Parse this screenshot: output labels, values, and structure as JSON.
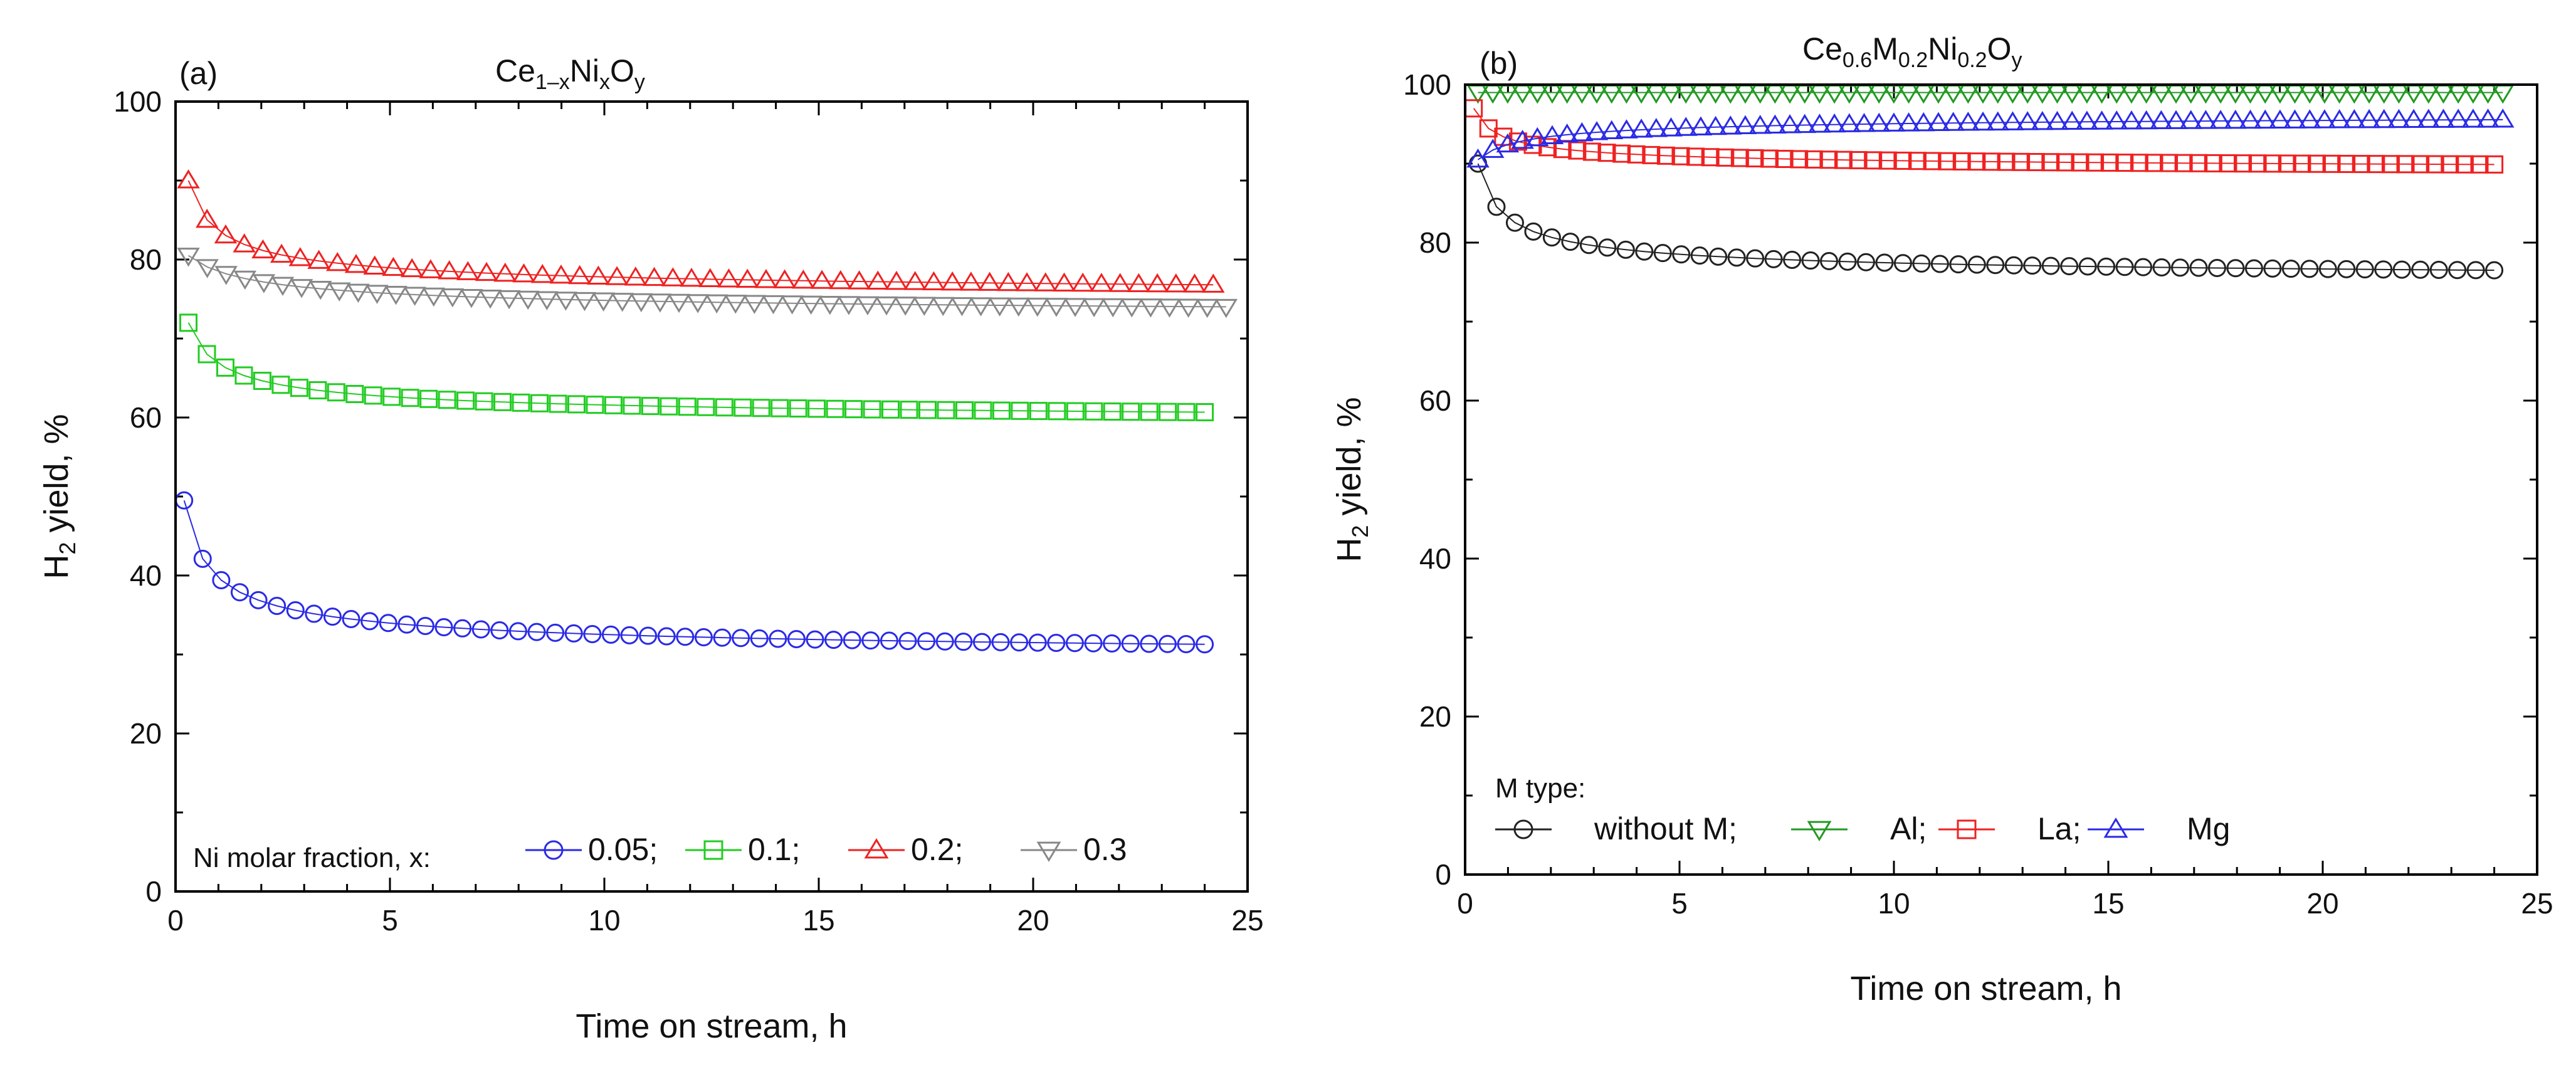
{
  "chart_data": [
    {
      "type": "scatter",
      "panel": "(a)",
      "title": {
        "base": "Ce",
        "sub1": "1–x",
        "mid": "Ni",
        "sub2": "x",
        "end": "O",
        "sub3": "y"
      },
      "xlabel": "Time on stream, h",
      "ylabel": {
        "main": "H",
        "sub": "2",
        "rest": " yield, %"
      },
      "xlim": [
        0,
        25
      ],
      "ylim": [
        0,
        100
      ],
      "xticks": [
        0,
        5,
        10,
        15,
        20,
        25
      ],
      "yticks": [
        0,
        20,
        40,
        60,
        80,
        100
      ],
      "legend_caption": "Ni molar fraction, x:",
      "series": [
        {
          "name": "0.05;",
          "marker": "circle",
          "color": "#2a2ae6",
          "start": 0.2,
          "end": 24,
          "a": 49.5,
          "b": 29,
          "tau": 0.3,
          "n": 56
        },
        {
          "name": "0.1;",
          "marker": "square",
          "color": "#22cc22",
          "start": 0.3,
          "end": 24,
          "a": 72,
          "b": 59,
          "tau": 0.4,
          "n": 56
        },
        {
          "name": "0.2;",
          "marker": "triangle-up",
          "color": "#ee2222",
          "start": 0.3,
          "end": 24.2,
          "a": 90,
          "b": 75,
          "tau": 0.35,
          "n": 56
        },
        {
          "name": "0.3",
          "marker": "triangle-down",
          "color": "#888888",
          "start": 0.3,
          "end": 24.5,
          "a": 80.5,
          "b": 72.5,
          "tau": 0.9,
          "n": 56
        }
      ]
    },
    {
      "type": "scatter",
      "panel": "(b)",
      "title": {
        "base": "Ce",
        "sub1": "0.6",
        "mid": "M",
        "sub2": "0.2",
        "end": "Ni",
        "sub3": "0.2",
        "tail": "O",
        "sub4": "y"
      },
      "xlabel": "Time on stream, h",
      "ylabel": {
        "main": "H",
        "sub": "2",
        "rest": " yield, %"
      },
      "xlim": [
        0,
        25
      ],
      "ylim": [
        0,
        100
      ],
      "xticks": [
        0,
        5,
        10,
        15,
        20,
        25
      ],
      "yticks": [
        0,
        20,
        40,
        60,
        80,
        100
      ],
      "legend_caption": "M type:",
      "series": [
        {
          "name": "without M;",
          "marker": "circle",
          "color": "#222222",
          "start": 0.3,
          "end": 24,
          "a": 90,
          "b": 74.8,
          "tau": 0.3,
          "n": 56
        },
        {
          "name": "Al;",
          "marker": "triangle-down",
          "color": "#229922",
          "start": 0.3,
          "end": 24.2,
          "a": 99,
          "b": 99,
          "tau": 1,
          "n": 70
        },
        {
          "name": "La;",
          "marker": "square",
          "color": "#ee2222",
          "start": 0.2,
          "end": 24,
          "a": 97,
          "b": 89,
          "tau": 0.3,
          "n": 70
        },
        {
          "name": "Mg",
          "marker": "triangle-up",
          "color": "#2a2ae6",
          "start": 0.3,
          "end": 24.2,
          "a": 90.5,
          "b": 96.5,
          "tau": 0.6,
          "n": 70
        }
      ]
    }
  ]
}
